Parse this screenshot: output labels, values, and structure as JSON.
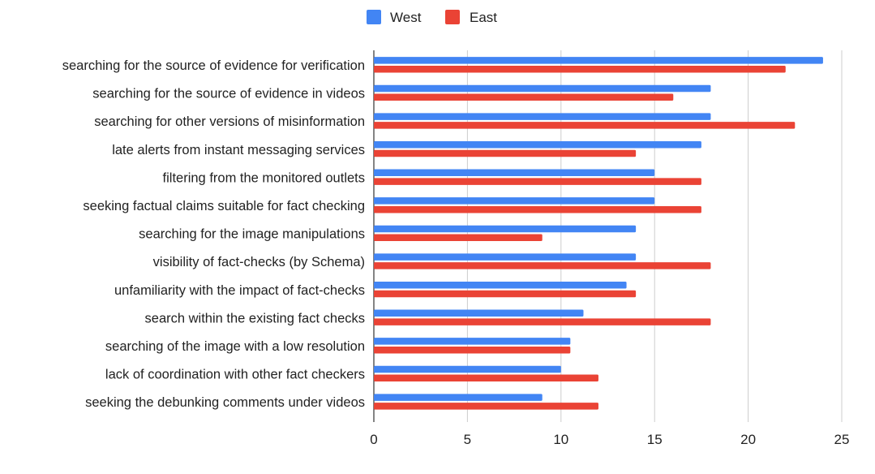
{
  "chart_data": {
    "type": "bar",
    "orientation": "horizontal",
    "title": "",
    "xlabel": "",
    "ylabel": "",
    "categories": [
      "searching for the source of evidence for verification",
      "searching for the source of evidence in videos",
      "searching for other versions of misinformation",
      "late alerts from instant messaging services",
      "filtering from the monitored outlets",
      "seeking factual claims suitable for fact checking",
      "searching for the image manipulations",
      "visibility of fact-checks (by Schema)",
      "unfamiliarity with the impact of fact-checks",
      "search within the existing fact checks",
      "searching of the image with a low resolution",
      "lack of coordination with other fact checkers",
      "seeking the debunking comments under videos"
    ],
    "series": [
      {
        "name": "West",
        "color": "#4285f4",
        "values": [
          24,
          18,
          18,
          17.5,
          15,
          15,
          14,
          14,
          13.5,
          11.2,
          10.5,
          10,
          9
        ]
      },
      {
        "name": "East",
        "color": "#ea4335",
        "values": [
          22,
          16,
          22.5,
          14,
          17.5,
          17.5,
          9,
          18,
          14,
          18,
          10.5,
          12,
          12
        ]
      }
    ],
    "xlim": [
      0,
      25
    ],
    "xticks": [
      0,
      5,
      10,
      15,
      20,
      25
    ],
    "grid": true,
    "legend_position": "top-center"
  }
}
